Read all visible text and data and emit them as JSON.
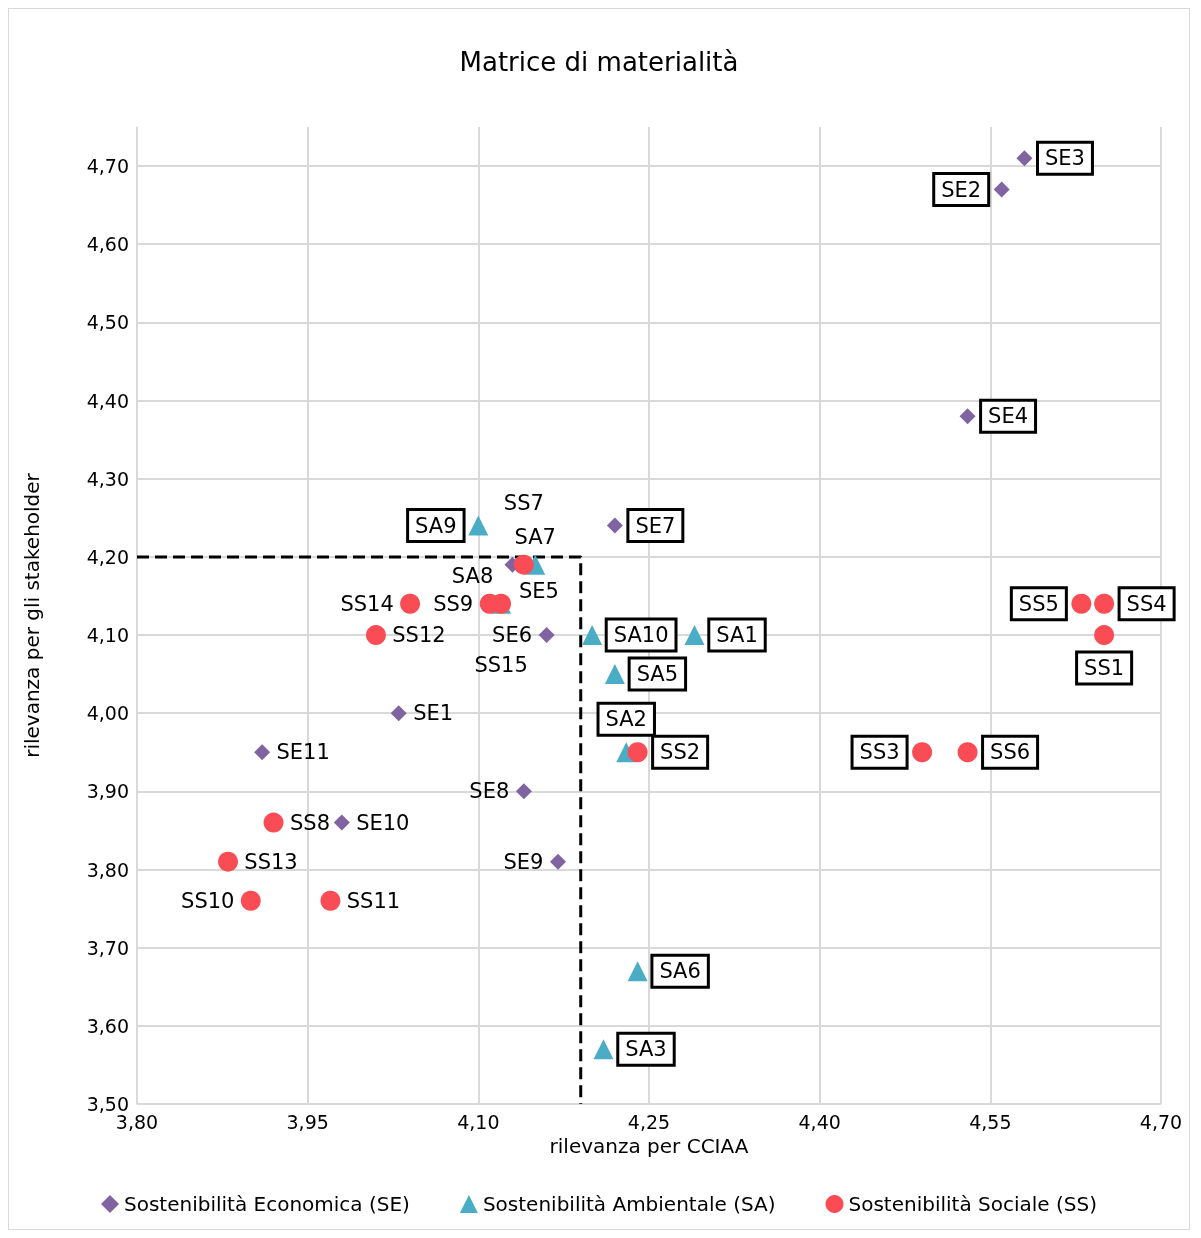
{
  "chart_data": {
    "type": "scatter",
    "title": "Matrice di materialità",
    "xlabel": "rilevanza per CCIAA",
    "ylabel": "rilevanza per gli stakeholder",
    "xlim": [
      3.8,
      4.7
    ],
    "xticks": [
      {
        "value": 3.8,
        "label": "3,80"
      },
      {
        "value": 3.95,
        "label": "3,95"
      },
      {
        "value": 4.1,
        "label": "4,10"
      },
      {
        "value": 4.25,
        "label": "4,25"
      },
      {
        "value": 4.4,
        "label": "4,40"
      },
      {
        "value": 4.55,
        "label": "4,55"
      },
      {
        "value": 4.7,
        "label": "4,70"
      }
    ],
    "ylim": [
      3.5,
      4.75
    ],
    "yticks": [
      {
        "value": 3.5,
        "label": "3,50"
      },
      {
        "value": 3.6,
        "label": "3,60"
      },
      {
        "value": 3.7,
        "label": "3,70"
      },
      {
        "value": 3.8,
        "label": "3,80"
      },
      {
        "value": 3.9,
        "label": "3,90"
      },
      {
        "value": 4.0,
        "label": "4,00"
      },
      {
        "value": 4.1,
        "label": "4,10"
      },
      {
        "value": 4.2,
        "label": "4,20"
      },
      {
        "value": 4.3,
        "label": "4,30"
      },
      {
        "value": 4.4,
        "label": "4,40"
      },
      {
        "value": 4.5,
        "label": "4,50"
      },
      {
        "value": 4.6,
        "label": "4,60"
      },
      {
        "value": 4.7,
        "label": "4,70"
      }
    ],
    "grid": true,
    "legend": "bottom",
    "series": [
      {
        "name": "Sostenibilità Economica (SE)",
        "color": "#8064a2",
        "marker": "diamond",
        "x": [
          4.58,
          4.56,
          4.53,
          4.22,
          4.13,
          4.16,
          4.03,
          3.91,
          4.14,
          3.98,
          4.17
        ],
        "values": [
          4.71,
          4.67,
          4.38,
          4.24,
          4.19,
          4.1,
          4.0,
          3.95,
          3.9,
          3.86,
          3.81
        ],
        "value_labels": [
          "SE3",
          "SE2",
          "SE4",
          "SE7",
          "SE5",
          "SE6",
          "SE1",
          "SE11",
          "SE8",
          "SE10",
          "SE9"
        ]
      },
      {
        "name": "Sostenibilità Ambientale (SA)",
        "color": "#4bacc6",
        "marker": "triangle",
        "x": [
          4.1,
          4.15,
          4.12,
          4.2,
          4.29,
          4.22,
          4.23,
          4.24,
          4.21
        ],
        "values": [
          4.24,
          4.19,
          4.14,
          4.1,
          4.1,
          4.05,
          3.95,
          3.67,
          3.57
        ],
        "value_labels": [
          "SA9",
          "SA7",
          "SA8",
          "SA10",
          "SA1",
          "SA5",
          "SA2",
          "SA6",
          "SA3"
        ]
      },
      {
        "name": "Sostenibilità Sociale (SS)",
        "color": "#f94c54",
        "marker": "circle",
        "x": [
          4.14,
          4.04,
          4.11,
          4.12,
          4.01,
          3.92,
          3.88,
          3.9,
          3.97,
          4.24,
          4.49,
          4.53,
          4.63,
          4.65,
          4.65
        ],
        "values": [
          4.19,
          4.14,
          4.14,
          4.14,
          4.1,
          3.86,
          3.81,
          3.76,
          3.76,
          3.95,
          3.95,
          3.95,
          4.14,
          4.14,
          4.1
        ],
        "value_labels": [
          "SS7",
          "SS14",
          "SS9",
          "SS15",
          "SS12",
          "SS8",
          "SS13",
          "SS10",
          "SS11",
          "SS2",
          "SS3",
          "SS6",
          "SS5",
          "SS4",
          "SS1"
        ]
      },
      {
        "type": "line",
        "color": "#000000",
        "marker": "none",
        "line_style": "dashed",
        "x": [
          3.8,
          4.19,
          4.19
        ],
        "values": [
          4.2,
          4.2,
          3.5
        ]
      }
    ]
  }
}
